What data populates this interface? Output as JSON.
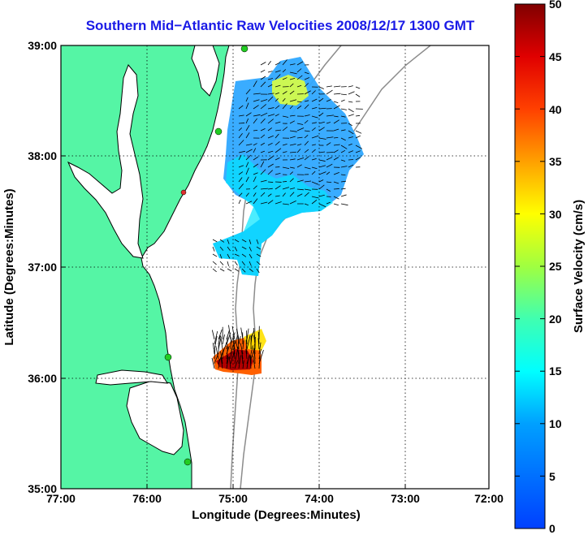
{
  "title": "Southern Mid−Atlantic Raw Velocities 2008/12/17 1300 GMT",
  "x_axis": {
    "label": "Longitude (Degrees:Minutes)",
    "ticks": [
      "77:00",
      "76:00",
      "75:00",
      "74:00",
      "73:00",
      "72:00"
    ]
  },
  "y_axis": {
    "label": "Latitude (Degrees:Minutes)",
    "ticks": [
      "39:00",
      "38:00",
      "37:00",
      "36:00",
      "35:00"
    ]
  },
  "colorbar": {
    "label": "Surface Velocity (cm/s)",
    "ticks": [
      "50",
      "45",
      "40",
      "35",
      "30",
      "25",
      "20",
      "15",
      "10",
      "5",
      "0"
    ],
    "range": [
      0,
      50
    ]
  },
  "colors": {
    "land": "#55f5a5",
    "title": "#1a1ae6",
    "coast": "#000000",
    "bathymetry": "#8c8c8c",
    "station": "#22cc22"
  }
}
